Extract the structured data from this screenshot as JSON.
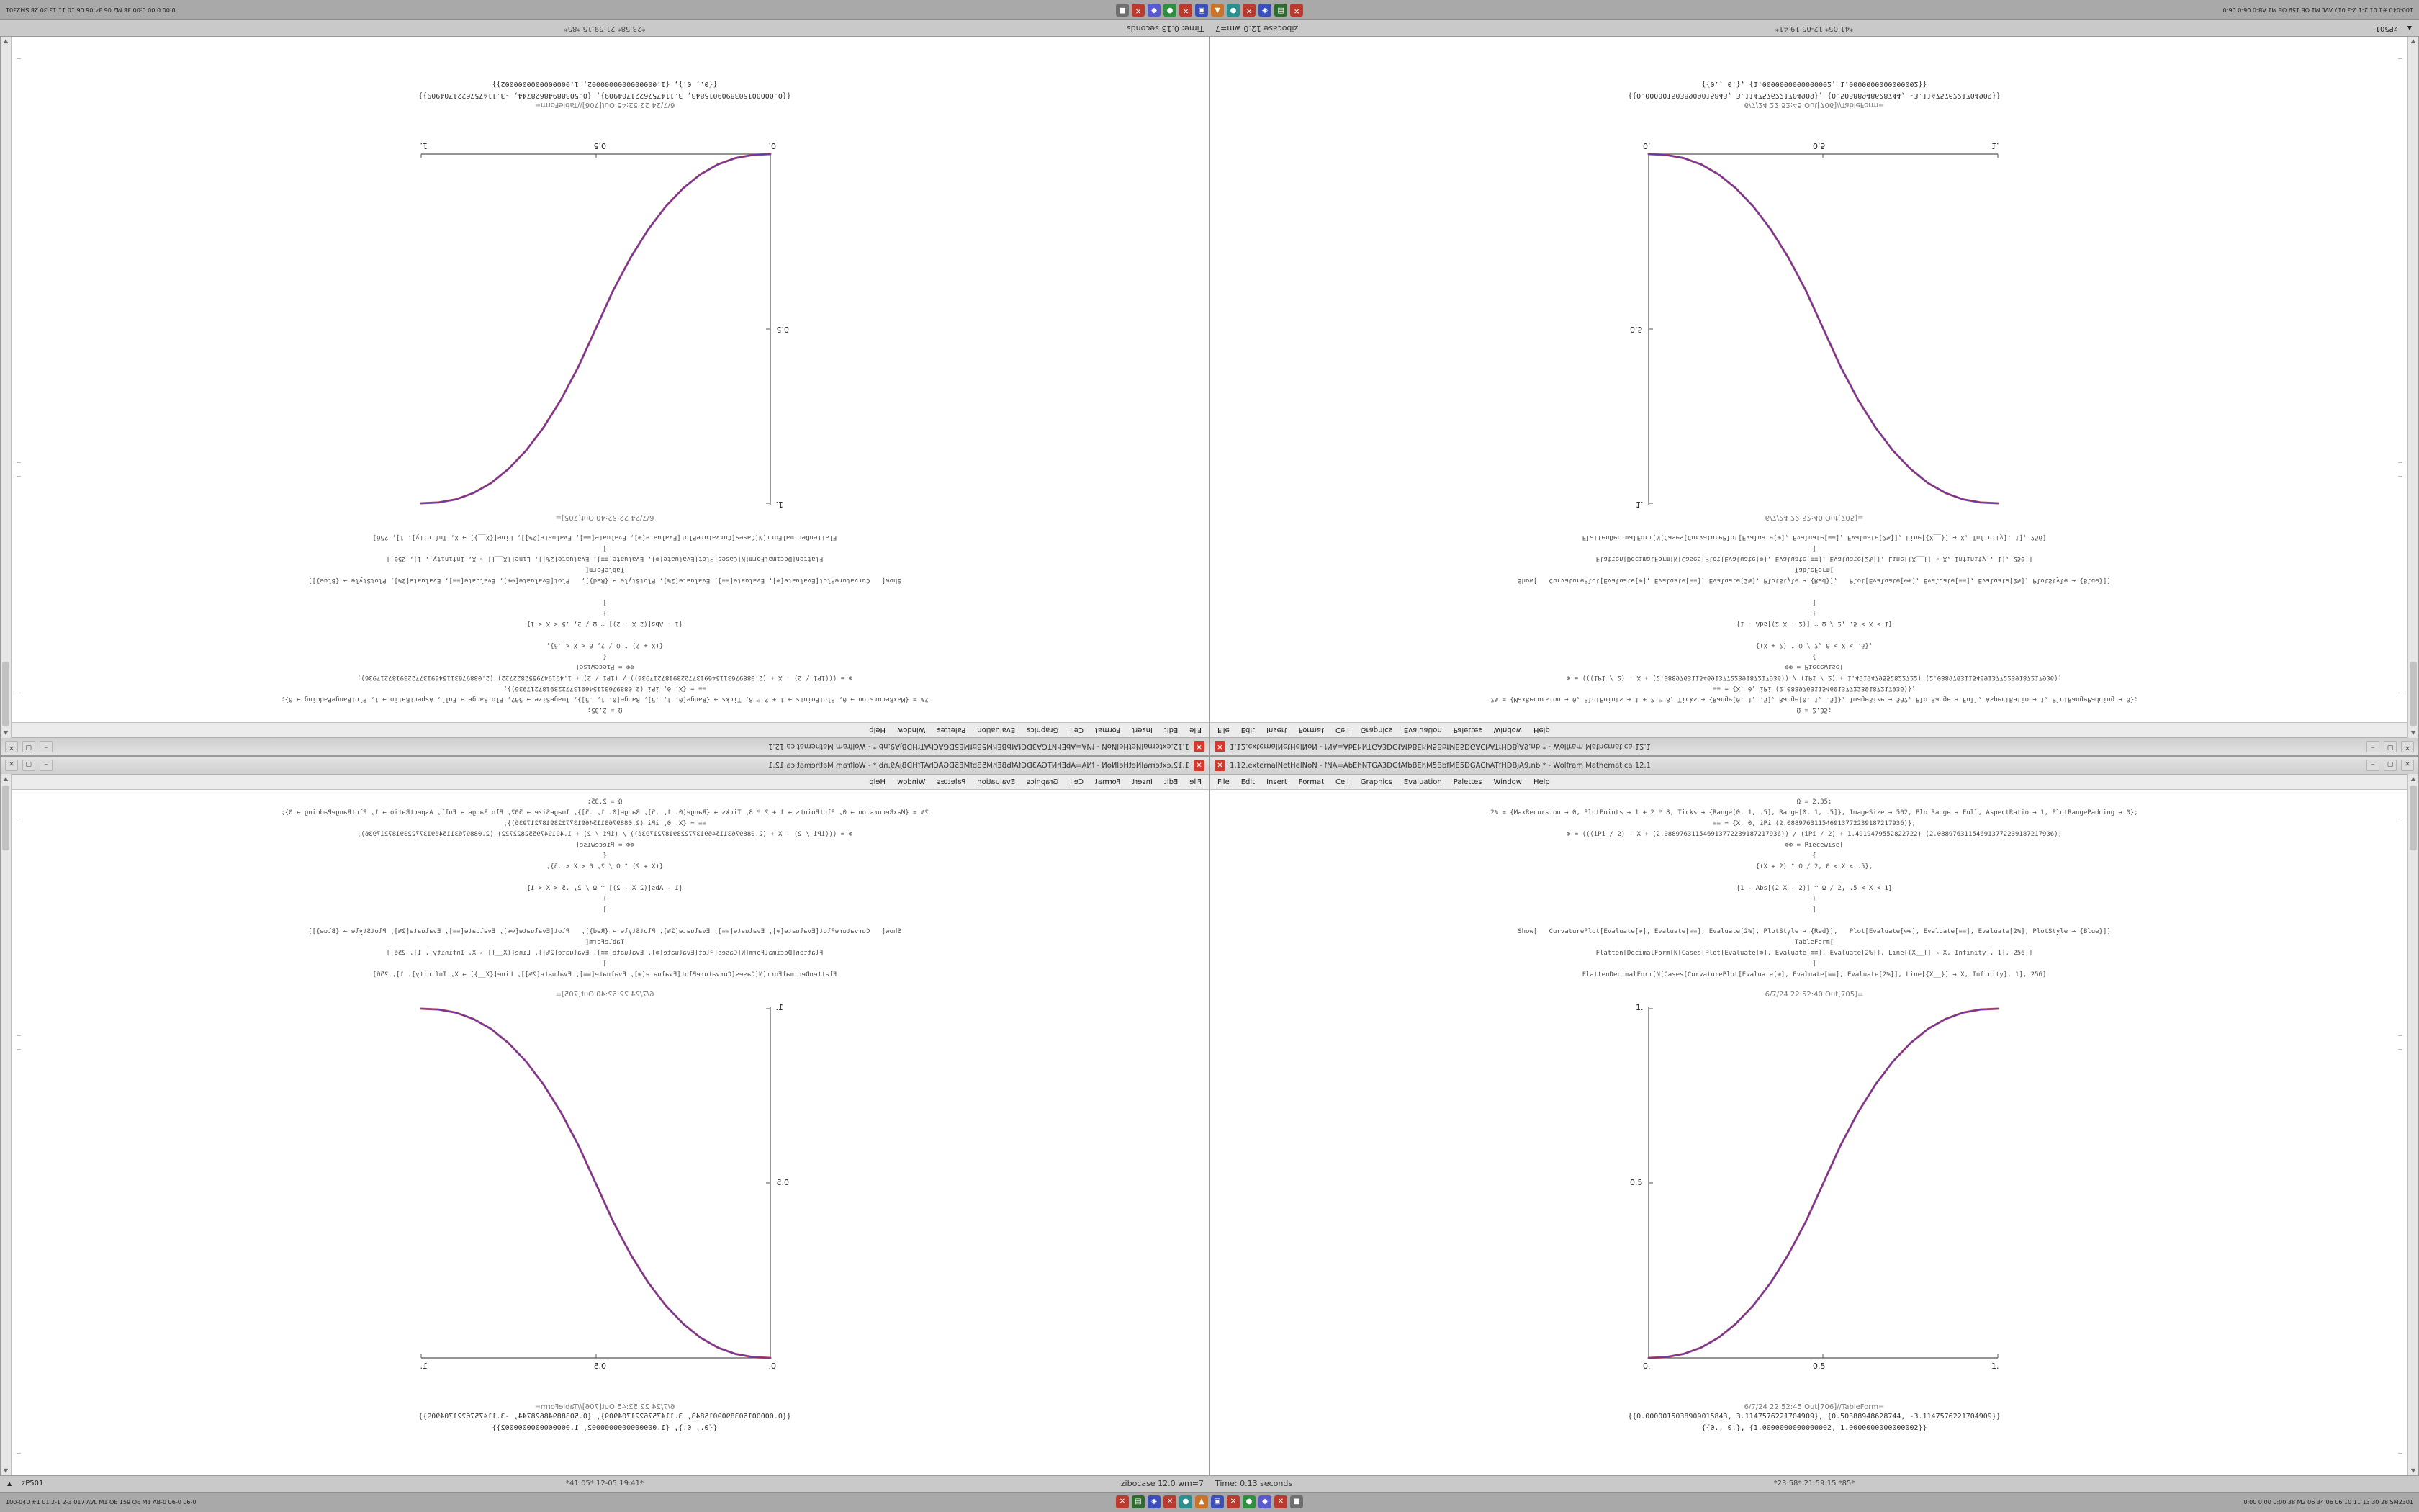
{
  "desktop": {
    "taskbar": {
      "left_corner_text": "100-040 #1 01 2-1 2-3 017 AVL M1 OE 159 OE M1 AB-0 06-0 06-0",
      "right_corner_text": "0:00 0:00 0:00 38 M2 06 34 06 06 10 11 13 30 28 SM2301",
      "ws_arrow": "▲",
      "ws_label": "zP501",
      "status_left": "zibocase 12.0 wm=7",
      "status_right": "Time: 0.13 seconds",
      "app_icons": [
        {
          "name": "app-icon-1",
          "color": "#b93a2f",
          "glyph": "✕"
        },
        {
          "name": "app-icon-2",
          "color": "#2e6b2e",
          "glyph": "▤"
        },
        {
          "name": "app-icon-3",
          "color": "#3a4fb9",
          "glyph": "◈"
        },
        {
          "name": "app-icon-4",
          "color": "#b93a2f",
          "glyph": "✕"
        },
        {
          "name": "app-icon-5",
          "color": "#2a8f8f",
          "glyph": "●"
        },
        {
          "name": "app-icon-6",
          "color": "#c9742a",
          "glyph": "▲"
        },
        {
          "name": "app-icon-7",
          "color": "#3a4fb9",
          "glyph": "▣"
        },
        {
          "name": "app-icon-8",
          "color": "#b93a2f",
          "glyph": "✕"
        },
        {
          "name": "app-icon-9",
          "color": "#2e8f3e",
          "glyph": "●"
        },
        {
          "name": "app-icon-10",
          "color": "#5a5ad0",
          "glyph": "◆"
        },
        {
          "name": "app-icon-11",
          "color": "#b93a2f",
          "glyph": "✕"
        },
        {
          "name": "app-icon-12",
          "color": "#6f6f6f",
          "glyph": "■"
        }
      ]
    },
    "underlay_titles": [
      "*41:05* 12-05 19:41*",
      "*23:58* 21:59:15 *85*"
    ],
    "window": {
      "icon_color": "#cf3a2e",
      "icon_glyph": "✕",
      "title": "1.12.externalNetHelNoN - fNA=AbEhNTGA3DGfAfbBEhM5BbfME5DGAChATfHDBjA9.nb * - Wolfram Mathematica 12.1",
      "buttons": [
        "–",
        "▢",
        "✕"
      ],
      "menu": [
        "File",
        "Edit",
        "Insert",
        "Format",
        "Cell",
        "Graphics",
        "Evaluation",
        "Palettes",
        "Window",
        "Help"
      ],
      "code_lines": [
        "Ω = 2.35;",
        "2% = {MaxRecursion → 0, PlotPoints → 1 + 2 * 8, Ticks → {Range[0, 1, .5], Range[0, 1, .5]}, ImageSize → 502, PlotRange → Full, AspectRatio → 1, PlotRangePadding → 0};",
        "≡≡ = {X, 0, iPi (2.088976311546913772239187217936)};",
        "⊕ = (((iPi / 2) - X + (2.088976311546913772239187217936)) / (iPi / 2) + 1.4919479552822722) (2.088976311546913772239187217936);",
        "⊕⊕ = Piecewise[",
        "{",
        "{(X + 2) ^ Ω / 2, 0 < X < .5},",
        "",
        "{1 - Abs[(2 X - 2)] ^ Ω / 2, .5 < X < 1}",
        "}",
        "]",
        "",
        "Show[   CurvaturePlot[Evaluate[⊕], Evaluate[≡≡], Evaluate[2%], PlotStyle → {Red}],   Plot[Evaluate[⊕⊕], Evaluate[≡≡], Evaluate[2%], PlotStyle → {Blue}]]",
        "TableForm[",
        "Flatten[DecimalForm[N[Cases[Plot[Evaluate[⊕], Evaluate[≡≡], Evaluate[2%]], Line[{X__}] → X, Infinity], 1], 256]]",
        "]",
        "FlattenDecimalForm[N[Cases[CurvaturePlot[Evaluate[⊕], Evaluate[≡≡], Evaluate[2%]], Line[{X__}] → X, Infinity], 1], 256]"
      ],
      "out_plot_label": "6/7/24 22:52:40 Out[705]=",
      "out_table_label": "6/7/24 22:52:45 Out[706]//TableForm=",
      "table_rows": [
        "{{0.0000015038909015843, 3.1147576221704909}, {0.50388948628744, -3.1147576221704909}}",
        "{{0., 0.}, {1.0000000000000002, 1.0000000000000002}}"
      ]
    }
  },
  "chart_data": {
    "type": "line",
    "title": "",
    "xlabel": "",
    "ylabel": "",
    "xlim": [
      0,
      1
    ],
    "ylim": [
      0,
      1
    ],
    "grid": false,
    "legend": false,
    "x_tick_labels": [
      "0.",
      "0.5",
      "1."
    ],
    "y_tick_labels": [
      "0.5",
      "1."
    ],
    "series": [
      {
        "name": "CurvaturePlot (Red)",
        "color": "#c04040",
        "points": [
          [
            0,
            0
          ],
          [
            0.05,
            0.0022
          ],
          [
            0.1,
            0.0114
          ],
          [
            0.15,
            0.0295
          ],
          [
            0.2,
            0.058
          ],
          [
            0.25,
            0.0981
          ],
          [
            0.3,
            0.1506
          ],
          [
            0.35,
            0.2162
          ],
          [
            0.4,
            0.296
          ],
          [
            0.45,
            0.3903
          ],
          [
            0.5,
            0.5
          ],
          [
            0.55,
            0.6097
          ],
          [
            0.6,
            0.704
          ],
          [
            0.65,
            0.7838
          ],
          [
            0.7,
            0.8494
          ],
          [
            0.75,
            0.9019
          ],
          [
            0.8,
            0.942
          ],
          [
            0.85,
            0.9705
          ],
          [
            0.9,
            0.9886
          ],
          [
            0.95,
            0.9978
          ],
          [
            1,
            1
          ]
        ]
      },
      {
        "name": "Plot (Blue)",
        "color": "#5533bb",
        "points": [
          [
            0,
            0
          ],
          [
            0.05,
            0.0022
          ],
          [
            0.1,
            0.0114
          ],
          [
            0.15,
            0.0295
          ],
          [
            0.2,
            0.058
          ],
          [
            0.25,
            0.0981
          ],
          [
            0.3,
            0.1506
          ],
          [
            0.35,
            0.2162
          ],
          [
            0.4,
            0.296
          ],
          [
            0.45,
            0.3903
          ],
          [
            0.5,
            0.5
          ],
          [
            0.55,
            0.6097
          ],
          [
            0.6,
            0.704
          ],
          [
            0.65,
            0.7838
          ],
          [
            0.7,
            0.8494
          ],
          [
            0.75,
            0.9019
          ],
          [
            0.8,
            0.942
          ],
          [
            0.85,
            0.9705
          ],
          [
            0.9,
            0.9886
          ],
          [
            0.95,
            0.9978
          ],
          [
            1,
            1
          ]
        ]
      }
    ]
  }
}
